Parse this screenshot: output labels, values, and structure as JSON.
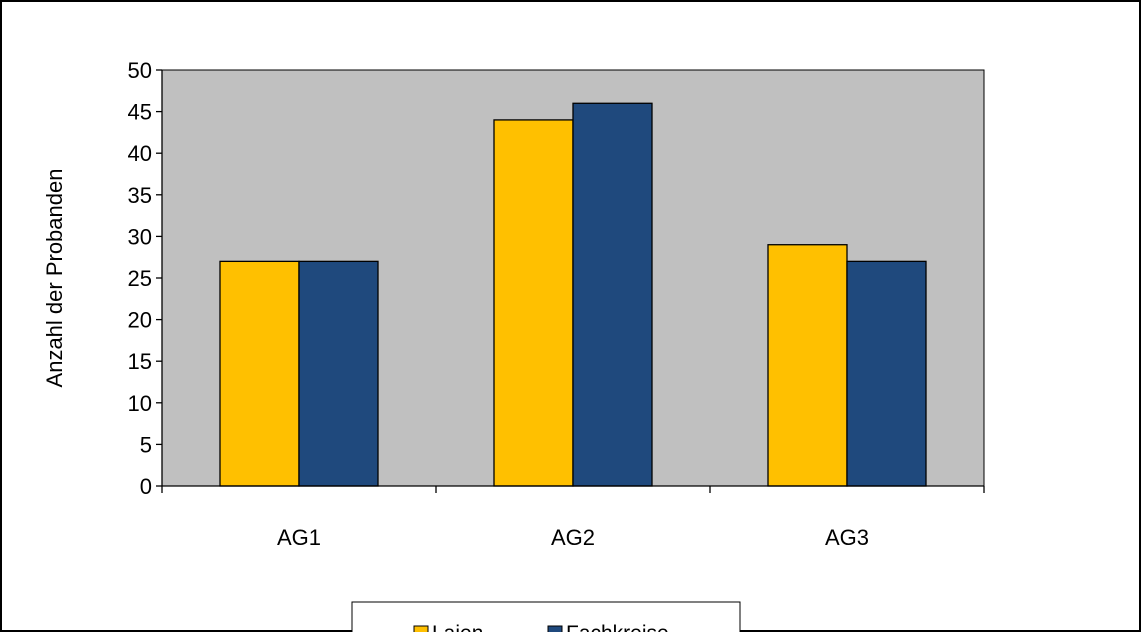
{
  "chart_data": {
    "type": "bar",
    "categories": [
      "AG1",
      "AG2",
      "AG3"
    ],
    "series": [
      {
        "name": "Laien",
        "values": [
          27,
          44,
          29
        ],
        "color": "#FFC000"
      },
      {
        "name": "Fachkreise",
        "values": [
          27,
          46,
          27
        ],
        "color": "#1F497D"
      }
    ],
    "ylabel": "Anzahl der Probanden",
    "ylim": [
      0,
      50
    ],
    "yticks": [
      0,
      5,
      10,
      15,
      20,
      25,
      30,
      35,
      40,
      45,
      50
    ],
    "plot_background": "#C0C0C0",
    "grid": false,
    "legend_position": "bottom"
  }
}
